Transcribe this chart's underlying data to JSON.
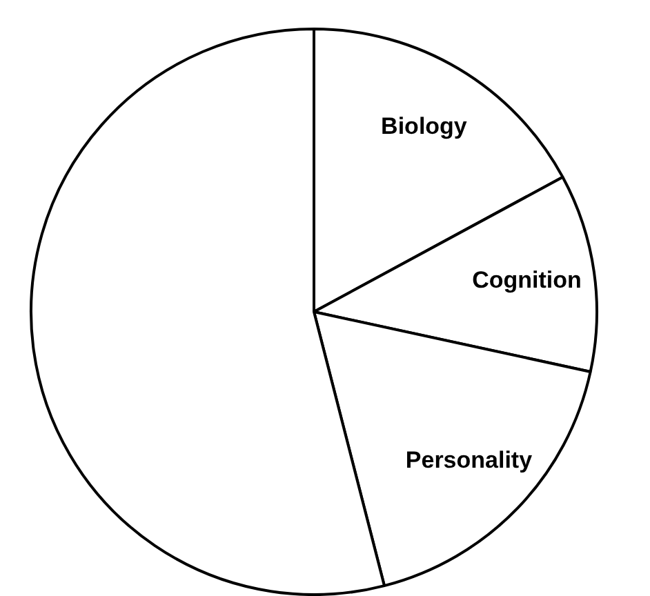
{
  "chart_data": {
    "type": "pie",
    "categories": [
      "Biology",
      "Cognition",
      "Personality",
      null
    ],
    "values": [
      17.1,
      11.3,
      17.6,
      54.0
    ],
    "colors": [
      "#ffffff",
      "#ffffff",
      "#ffffff",
      "#ffffff"
    ],
    "legend": false
  }
}
